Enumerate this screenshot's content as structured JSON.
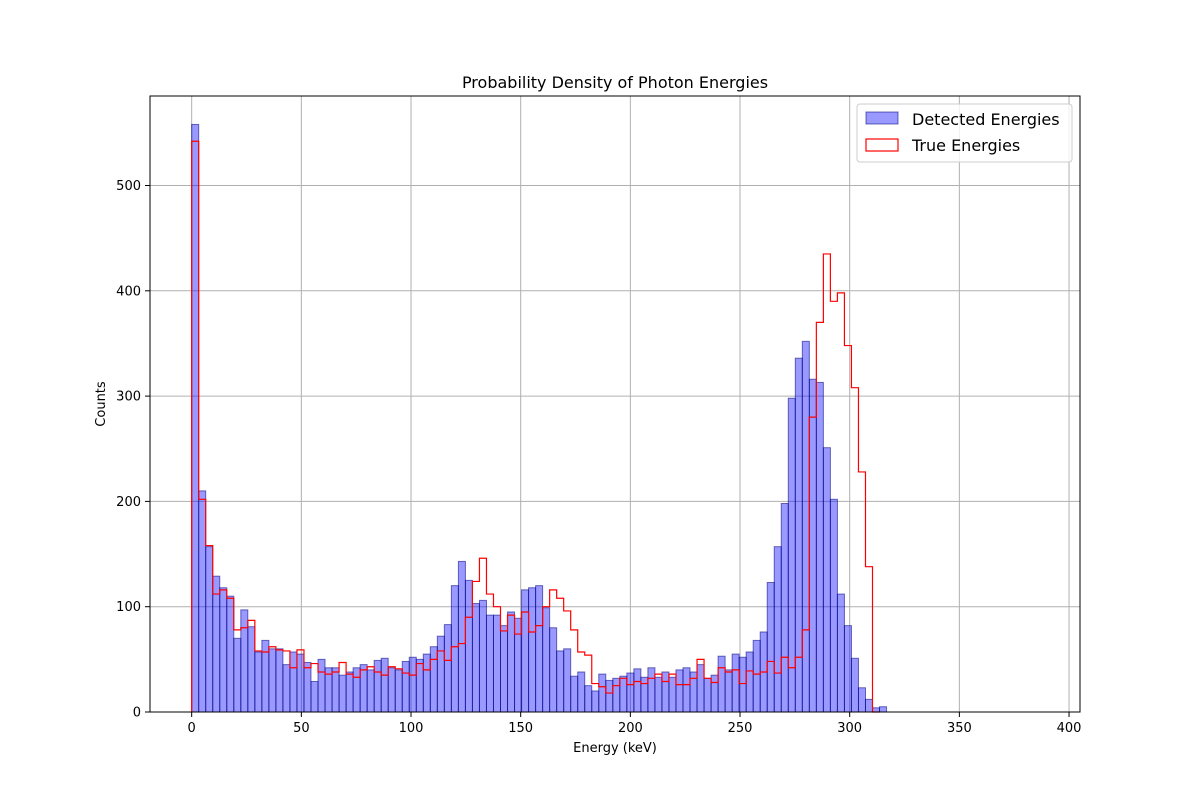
{
  "chart_data": {
    "type": "bar",
    "title": "Probability Density of Photon Energies",
    "xlabel": "Energy (keV)",
    "ylabel": "Counts",
    "xlim": [
      -19,
      405
    ],
    "ylim": [
      0,
      585
    ],
    "xticks": [
      0,
      50,
      100,
      150,
      200,
      250,
      300,
      350,
      400
    ],
    "yticks": [
      0,
      100,
      200,
      300,
      400,
      500
    ],
    "grid": true,
    "legend_position": "top-right",
    "bin_start": 0,
    "bin_width": 3.2,
    "series": [
      {
        "name": "Detected Energies",
        "style": "filled",
        "color": "#0000ff",
        "values": [
          558,
          210,
          157,
          129,
          118,
          110,
          70,
          97,
          81,
          57,
          68,
          60,
          60,
          45,
          57,
          55,
          47,
          29,
          50,
          42,
          42,
          35,
          38,
          42,
          45,
          40,
          49,
          51,
          42,
          40,
          48,
          52,
          50,
          55,
          62,
          72,
          83,
          120,
          143,
          125,
          103,
          106,
          92,
          92,
          82,
          95,
          89,
          116,
          118,
          120,
          99,
          80,
          58,
          60,
          34,
          38,
          25,
          20,
          36,
          30,
          32,
          34,
          37,
          41,
          33,
          42,
          33,
          38,
          33,
          40,
          42,
          38,
          45,
          32,
          35,
          53,
          40,
          55,
          52,
          57,
          68,
          76,
          123,
          157,
          198,
          298,
          336,
          352,
          316,
          313,
          251,
          202,
          112,
          82,
          51,
          23,
          12,
          4,
          5
        ]
      },
      {
        "name": "True Energies",
        "style": "step",
        "color": "#ff0000",
        "values": [
          542,
          202,
          158,
          112,
          116,
          108,
          78,
          80,
          87,
          58,
          57,
          62,
          59,
          58,
          42,
          59,
          42,
          46,
          38,
          36,
          38,
          47,
          36,
          33,
          40,
          43,
          38,
          35,
          43,
          41,
          37,
          35,
          46,
          40,
          50,
          58,
          49,
          62,
          65,
          90,
          124,
          146,
          112,
          100,
          77,
          92,
          74,
          95,
          76,
          82,
          100,
          116,
          108,
          96,
          78,
          57,
          54,
          27,
          24,
          18,
          25,
          32,
          26,
          29,
          27,
          32,
          36,
          29,
          36,
          26,
          26,
          32,
          50,
          32,
          28,
          42,
          38,
          40,
          27,
          39,
          36,
          38,
          48,
          37,
          52,
          42,
          52,
          78,
          280,
          370,
          435,
          390,
          398,
          348,
          308,
          228,
          138,
          0
        ]
      }
    ]
  }
}
